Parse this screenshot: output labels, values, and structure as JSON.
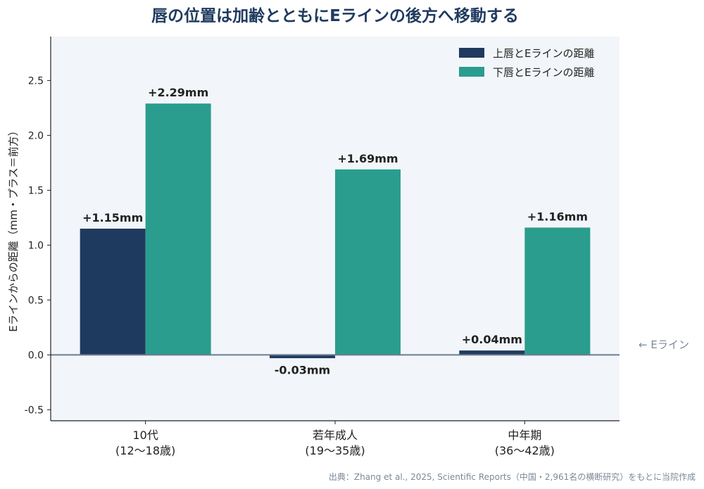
{
  "chart_data": {
    "type": "bar",
    "title": "唇の位置は加齢とともにEラインの後方へ移動する",
    "ylabel": "Eラインからの距離（mm・プラス＝前方）",
    "xlabel": "",
    "ylim": [
      -0.6,
      2.9
    ],
    "yticks": [
      "2.5",
      "2.0",
      "1.5",
      "1.0",
      "0.5",
      "0.0",
      "-0.5"
    ],
    "ytick_values": [
      2.5,
      2.0,
      1.5,
      1.0,
      0.5,
      0.0,
      -0.5
    ],
    "categories": [
      {
        "line1": "10代",
        "line2": "(12〜18歳)"
      },
      {
        "line1": "若年成人",
        "line2": "(19〜35歳)"
      },
      {
        "line1": "中年期",
        "line2": "(36〜42歳)"
      }
    ],
    "series": [
      {
        "name": "上唇とEラインの距離",
        "color": "#1f3a5f",
        "values": [
          1.15,
          -0.03,
          0.04
        ],
        "labels": [
          "+1.15mm",
          "-0.03mm",
          "+0.04mm"
        ]
      },
      {
        "name": "下唇とEラインの距離",
        "color": "#2a9d8f",
        "values": [
          2.29,
          1.69,
          1.16
        ],
        "labels": [
          "+2.29mm",
          "+1.69mm",
          "+1.16mm"
        ]
      }
    ],
    "reference_line": {
      "value": 0.0,
      "label": "← Eライン",
      "color": "#6b7b8c"
    },
    "legend_position": "top-right",
    "grid": false,
    "plot_background": "#f2f6fa",
    "source": "出典：Zhang et al., 2025, Scientific Reports（中国・2,961名の横断研究）をもとに当院作成"
  }
}
